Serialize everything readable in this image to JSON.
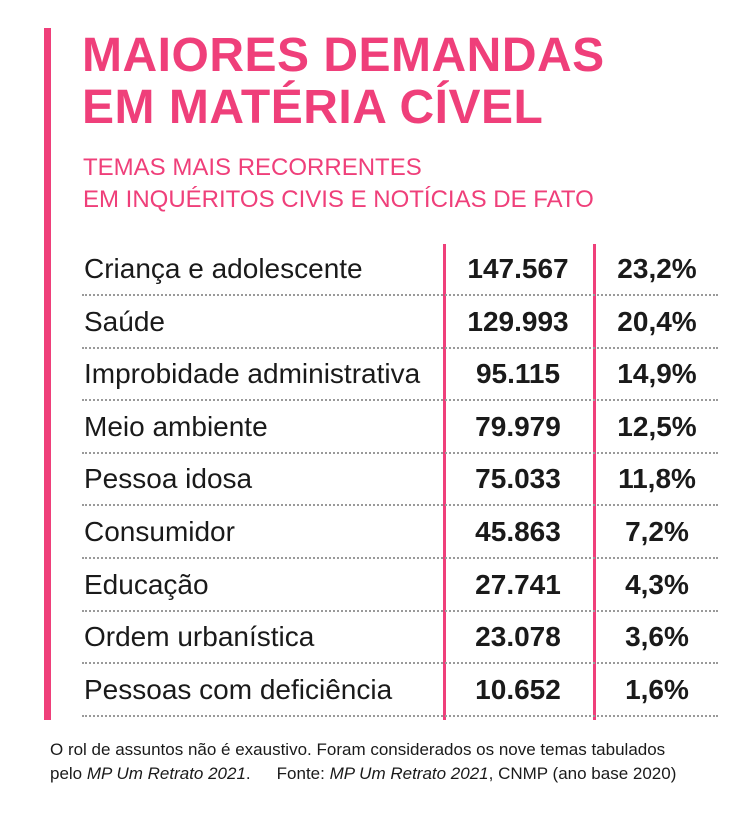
{
  "header": {
    "title_line1": "MAIORES DEMANDAS",
    "title_line2": "EM MATÉRIA CÍVEL",
    "subtitle_line1": "TEMAS MAIS RECORRENTES",
    "subtitle_line2": "EM INQUÉRITOS CIVIS E NOTÍCIAS DE FATO"
  },
  "chart_data": {
    "type": "table",
    "title": "MAIORES DEMANDAS EM MATÉRIA CÍVEL",
    "subtitle": "TEMAS MAIS RECORRENTES EM INQUÉRITOS CIVIS E NOTÍCIAS DE FATO",
    "rows": [
      {
        "label": "Criança e adolescente",
        "value": "147.567",
        "pct": "23,2%"
      },
      {
        "label": "Saúde",
        "value": "129.993",
        "pct": "20,4%"
      },
      {
        "label": "Improbidade administrativa",
        "value": "95.115",
        "pct": "14,9%"
      },
      {
        "label": "Meio ambiente",
        "value": "79.979",
        "pct": "12,5%"
      },
      {
        "label": "Pessoa idosa",
        "value": "75.033",
        "pct": "11,8%"
      },
      {
        "label": "Consumidor",
        "value": "45.863",
        "pct": "7,2%"
      },
      {
        "label": "Educação",
        "value": "27.741",
        "pct": "4,3%"
      },
      {
        "label": "Ordem urbanística",
        "value": "23.078",
        "pct": "3,6%"
      },
      {
        "label": "Pessoas com deficiência",
        "value": "10.652",
        "pct": "1,6%"
      }
    ]
  },
  "footnote": {
    "text_line1": "O rol de assuntos não é exaustivo. Foram considerados os nove temas tabulados",
    "pelo": "pelo ",
    "source_title_1": "MP Um Retrato 2021",
    "dot": ".",
    "fonte": "Fonte: ",
    "source_title_2": "MP Um Retrato 2021",
    "source_rest": ", CNMP (ano base 2020)"
  },
  "colors": {
    "accent": "#ef3f7a",
    "text": "#1a1a1a",
    "rule": "#9a9a9a"
  }
}
